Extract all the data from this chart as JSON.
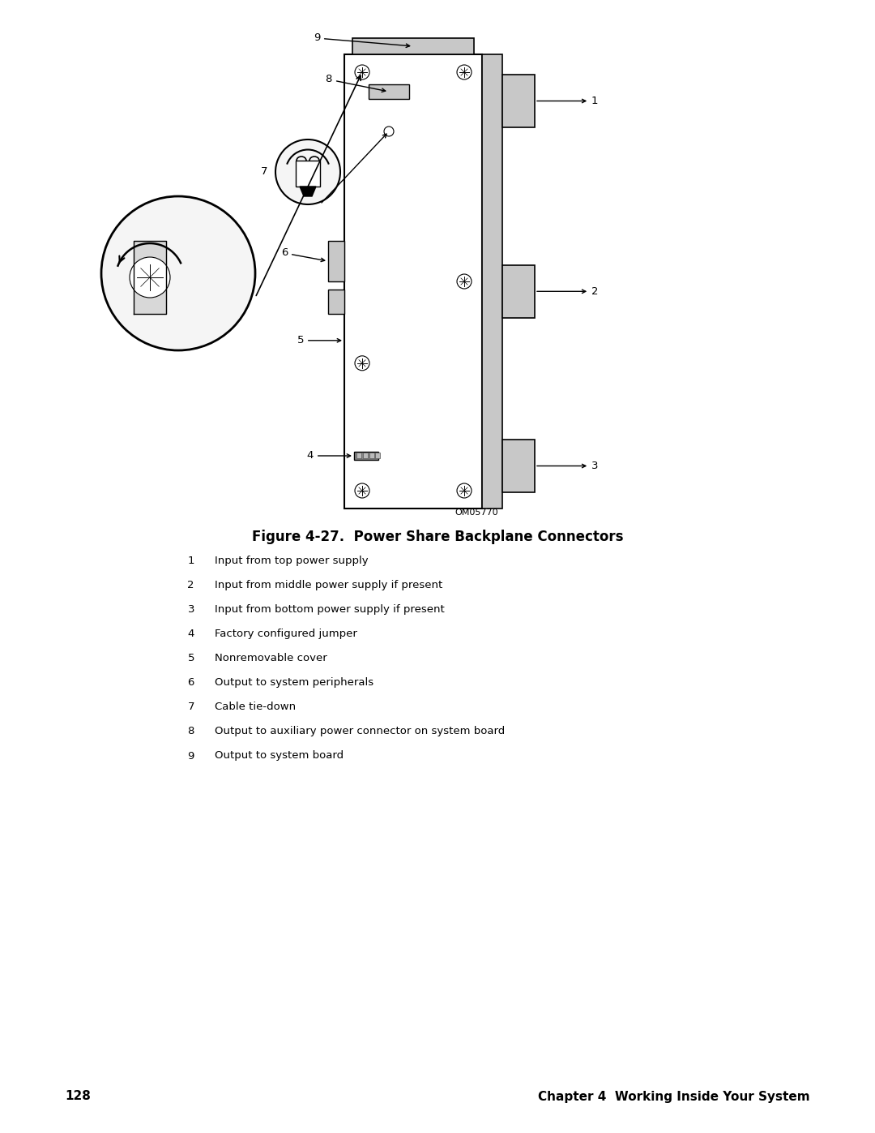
{
  "title": "Figure 4-27.  Power Share Backplane Connectors",
  "figure_id": "OM05770",
  "page_number": "128",
  "chapter_text": "Chapter 4  Working Inside Your System",
  "legend": [
    {
      "num": "1",
      "text": "Input from top power supply"
    },
    {
      "num": "2",
      "text": "Input from middle power supply if present"
    },
    {
      "num": "3",
      "text": "Input from bottom power supply if present"
    },
    {
      "num": "4",
      "text": "Factory configured jumper"
    },
    {
      "num": "5",
      "text": "Nonremovable cover"
    },
    {
      "num": "6",
      "text": "Output to system peripherals"
    },
    {
      "num": "7",
      "text": "Cable tie-down"
    },
    {
      "num": "8",
      "text": "Output to auxiliary power connector on system board"
    },
    {
      "num": "9",
      "text": "Output to system board"
    }
  ],
  "bg_color": "#ffffff",
  "line_color": "#000000",
  "gray_color": "#aaaaaa",
  "light_gray": "#c8c8c8",
  "dark_gray": "#888888"
}
